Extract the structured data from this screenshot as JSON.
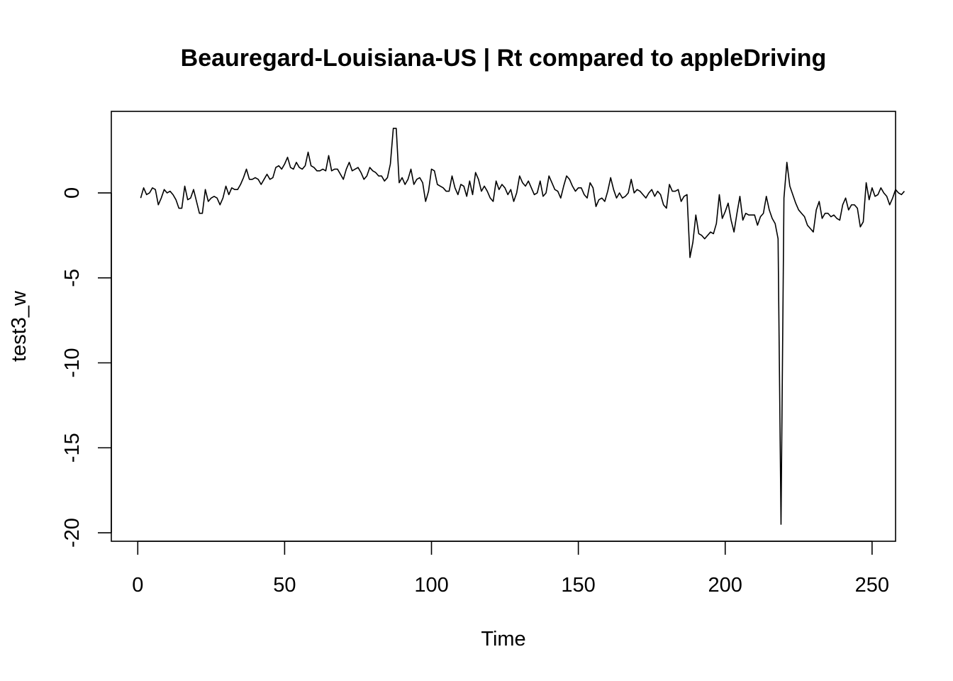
{
  "chart_data": {
    "type": "line",
    "title": "Beauregard-Louisiana-US | Rt compared to appleDriving",
    "xlabel": "Time",
    "ylabel": "test3_w",
    "xlim": [
      -9,
      258
    ],
    "ylim": [
      -20.5,
      4.8
    ],
    "x_ticks": [
      0,
      50,
      100,
      150,
      200,
      250
    ],
    "y_ticks": [
      0,
      -5,
      -10,
      -15,
      -20
    ],
    "grid": false,
    "legend": "none",
    "line_color": "#000000",
    "series": [
      {
        "x_start": 1,
        "values": [
          -0.3,
          0.3,
          -0.1,
          0.0,
          0.3,
          0.2,
          -0.7,
          -0.3,
          0.2,
          0.0,
          0.1,
          -0.1,
          -0.4,
          -0.9,
          -0.9,
          0.4,
          -0.4,
          -0.3,
          0.2,
          -0.5,
          -1.2,
          -1.2,
          0.2,
          -0.5,
          -0.3,
          -0.2,
          -0.3,
          -0.7,
          -0.3,
          0.4,
          -0.1,
          0.3,
          0.2,
          0.2,
          0.5,
          0.9,
          1.4,
          0.8,
          0.8,
          0.9,
          0.8,
          0.5,
          0.8,
          1.1,
          0.8,
          0.9,
          1.5,
          1.6,
          1.4,
          1.7,
          2.1,
          1.5,
          1.4,
          1.8,
          1.5,
          1.4,
          1.6,
          2.4,
          1.6,
          1.5,
          1.3,
          1.3,
          1.4,
          1.3,
          2.2,
          1.3,
          1.4,
          1.4,
          1.1,
          0.8,
          1.4,
          1.8,
          1.3,
          1.4,
          1.5,
          1.2,
          0.8,
          1.0,
          1.5,
          1.3,
          1.2,
          1.0,
          1.0,
          0.7,
          0.9,
          1.7,
          3.8,
          3.8,
          0.6,
          0.9,
          0.5,
          0.8,
          1.4,
          0.5,
          0.8,
          0.9,
          0.6,
          -0.5,
          0.1,
          1.4,
          1.3,
          0.5,
          0.4,
          0.3,
          0.1,
          0.1,
          1.0,
          0.3,
          -0.1,
          0.5,
          0.4,
          -0.2,
          0.7,
          -0.1,
          1.2,
          0.8,
          0.1,
          0.4,
          0.1,
          -0.3,
          -0.5,
          0.7,
          0.2,
          0.5,
          0.3,
          -0.1,
          0.2,
          -0.5,
          0.0,
          1.0,
          0.6,
          0.4,
          0.7,
          0.3,
          -0.1,
          0.0,
          0.7,
          -0.2,
          0.0,
          1.0,
          0.6,
          0.2,
          0.1,
          -0.3,
          0.4,
          1.0,
          0.8,
          0.4,
          0.1,
          0.3,
          0.3,
          -0.1,
          -0.3,
          0.6,
          0.3,
          -0.8,
          -0.4,
          -0.3,
          -0.5,
          0.1,
          0.9,
          0.2,
          -0.3,
          0.0,
          -0.3,
          -0.2,
          0.0,
          0.8,
          0.0,
          0.2,
          0.1,
          -0.1,
          -0.3,
          0.0,
          0.2,
          -0.2,
          0.1,
          -0.1,
          -0.7,
          -0.9,
          0.5,
          0.1,
          0.1,
          0.2,
          -0.5,
          -0.2,
          -0.1,
          -3.8,
          -2.9,
          -1.3,
          -2.4,
          -2.5,
          -2.7,
          -2.5,
          -2.3,
          -2.4,
          -1.8,
          -0.1,
          -1.5,
          -1.1,
          -0.6,
          -1.6,
          -2.3,
          -1.2,
          -0.2,
          -1.6,
          -1.2,
          -1.3,
          -1.3,
          -1.3,
          -1.9,
          -1.4,
          -1.2,
          -0.2,
          -1.0,
          -1.5,
          -1.8,
          -2.7,
          -19.5,
          -0.3,
          1.8,
          0.4,
          -0.1,
          -0.6,
          -1.0,
          -1.2,
          -1.4,
          -1.9,
          -2.1,
          -2.3,
          -1.0,
          -0.5,
          -1.5,
          -1.2,
          -1.2,
          -1.4,
          -1.3,
          -1.5,
          -1.6,
          -0.7,
          -0.3,
          -1.0,
          -0.7,
          -0.7,
          -0.9,
          -2.0,
          -1.7,
          0.6,
          -0.4,
          0.3,
          -0.2,
          -0.1,
          0.3,
          0.0,
          -0.2,
          -0.7,
          -0.3,
          0.2,
          0.0,
          -0.1,
          0.1
        ]
      }
    ]
  }
}
